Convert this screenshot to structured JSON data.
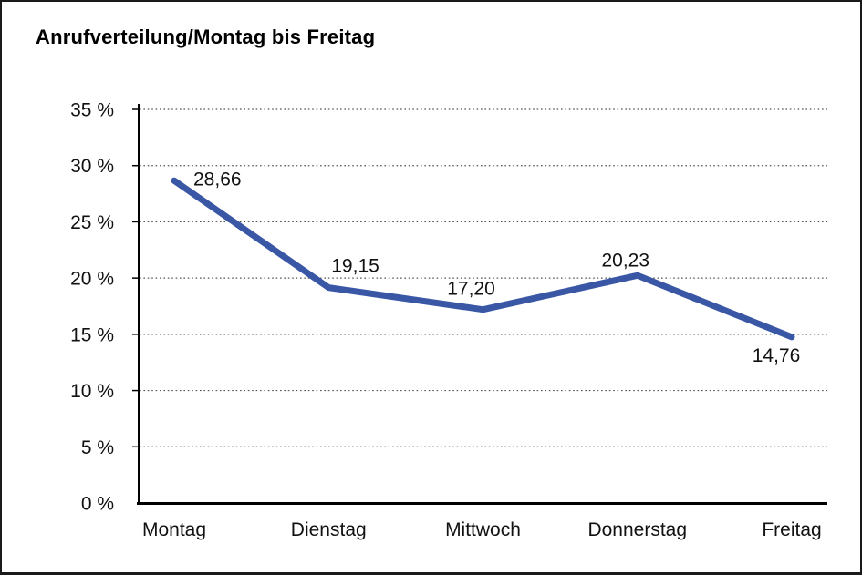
{
  "chart": {
    "title": "Anrufverteilung/Montag bis Freitag"
  },
  "chart_data": {
    "type": "line",
    "title": "Anrufverteilung/Montag bis Freitag",
    "categories": [
      "Montag",
      "Dienstag",
      "Mittwoch",
      "Donnerstag",
      "Freitag"
    ],
    "series": [
      {
        "name": "Anrufverteilung",
        "values": [
          28.66,
          19.15,
          17.2,
          20.23,
          14.76
        ],
        "value_labels": [
          "28,66",
          "19,15",
          "17,20",
          "20,23",
          "14,76"
        ]
      }
    ],
    "xlabel": "",
    "ylabel": "",
    "ylim": [
      0,
      35
    ],
    "y_tick_step": 5,
    "y_tick_labels": [
      "0 %",
      "5 %",
      "10 %",
      "15 %",
      "20 %",
      "25 %",
      "30 %",
      "35 %"
    ],
    "grid": "horizontal-dotted",
    "legend": "none",
    "colors": {
      "line": "#3A57A6",
      "axis": "#000000",
      "gridline": "#555555",
      "text": "#111111"
    }
  }
}
